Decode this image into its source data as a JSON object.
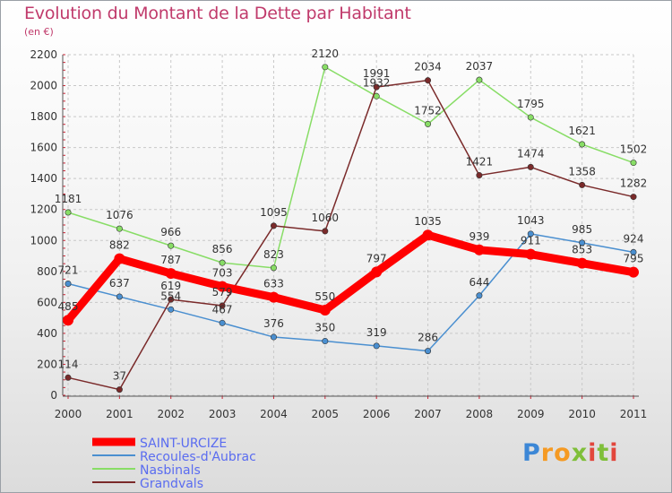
{
  "header": {
    "title": "Evolution du Montant de la Dette par Habitant",
    "unit": "(en €)"
  },
  "logo": {
    "text": "Proxiti"
  },
  "chart_data": {
    "type": "line",
    "title": "Evolution du Montant de la Dette par Habitant",
    "ylabel": "(en €)",
    "xlabel": "",
    "ylim": [
      0,
      2200
    ],
    "yticks": [
      0,
      200,
      400,
      600,
      800,
      1000,
      1200,
      1400,
      1600,
      1800,
      2000,
      2200
    ],
    "grid": true,
    "legend_position": "bottom-left",
    "categories": [
      "2000",
      "2001",
      "2002",
      "2003",
      "2004",
      "2005",
      "2006",
      "2007",
      "2008",
      "2009",
      "2010",
      "2011"
    ],
    "series": [
      {
        "name": "SAINT-URCIZE",
        "color": "#ff0000",
        "label_color": "#5a6cf0",
        "values": [
          485,
          882,
          787,
          703,
          633,
          550,
          797,
          1035,
          939,
          911,
          853,
          795
        ]
      },
      {
        "name": "Recoules-d'Aubrac",
        "color": "#4a8fd0",
        "label_color": "#5a6cf0",
        "values": [
          721,
          637,
          554,
          467,
          376,
          350,
          319,
          286,
          644,
          1043,
          985,
          924
        ]
      },
      {
        "name": "Nasbinals",
        "color": "#88dd66",
        "label_color": "#5a6cf0",
        "values": [
          1181,
          1076,
          966,
          856,
          823,
          2120,
          1932,
          1752,
          2037,
          1795,
          1621,
          1502
        ]
      },
      {
        "name": "Grandvals",
        "color": "#7a2a2a",
        "label_color": "#5a6cf0",
        "values": [
          114,
          37,
          619,
          579,
          1095,
          1060,
          1991,
          2034,
          1421,
          1474,
          1358,
          1282
        ]
      }
    ]
  }
}
